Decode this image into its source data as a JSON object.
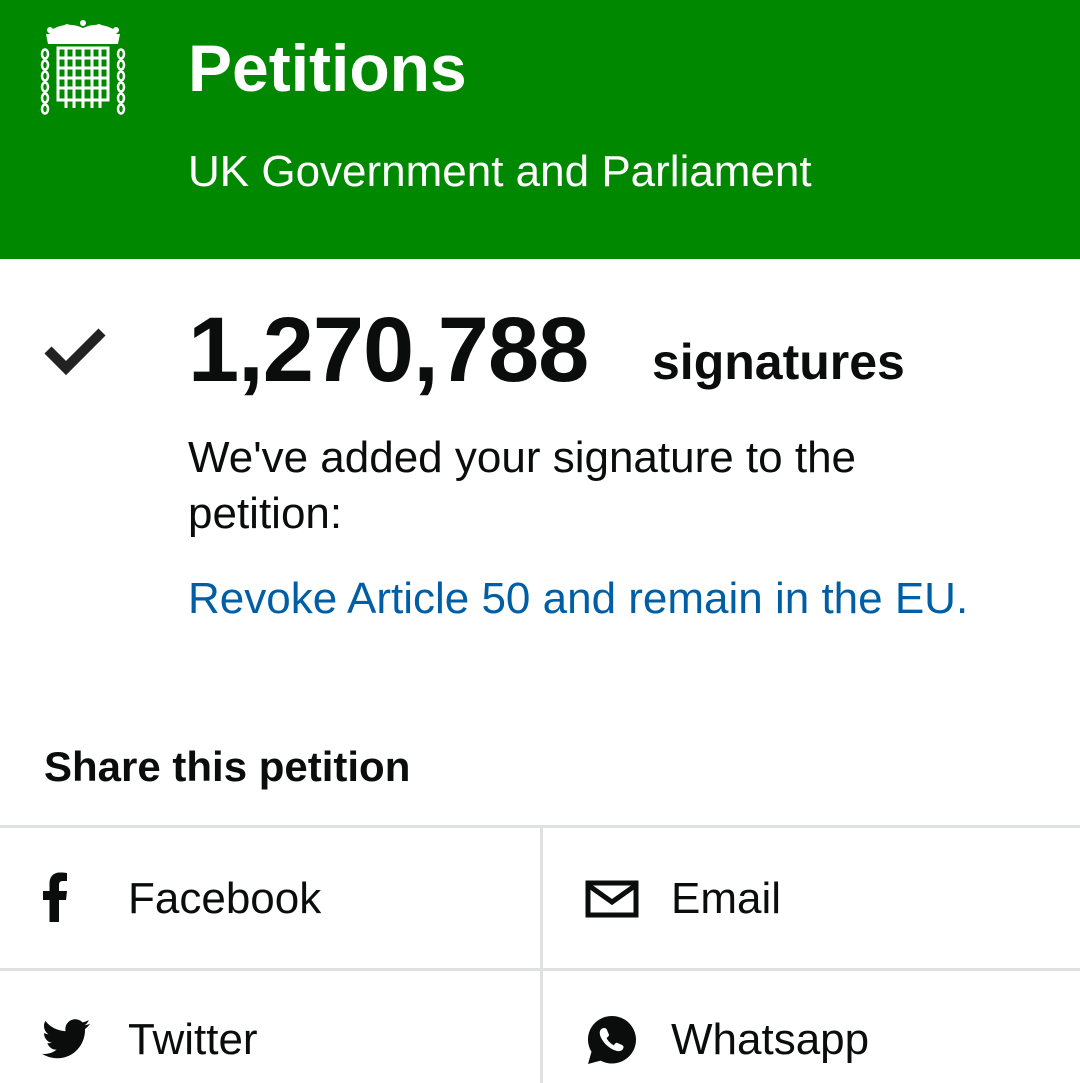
{
  "header": {
    "title": "Petitions",
    "subtitle": "UK Government and Parliament",
    "logo_icon": "portcullis-icon",
    "background_color": "#008800"
  },
  "signature": {
    "status_icon": "checkmark-icon",
    "count": "1,270,788",
    "count_label": "signatures",
    "confirmation": "We've added your signature to the petition:",
    "petition_title": "Revoke Article 50 and remain in the EU.",
    "link_color": "#005ea5"
  },
  "share": {
    "heading": "Share this petition",
    "options": [
      {
        "label": "Facebook",
        "icon": "facebook-icon"
      },
      {
        "label": "Email",
        "icon": "envelope-icon"
      },
      {
        "label": "Twitter",
        "icon": "twitter-bird-icon"
      },
      {
        "label": "Whatsapp",
        "icon": "whatsapp-icon"
      }
    ]
  }
}
